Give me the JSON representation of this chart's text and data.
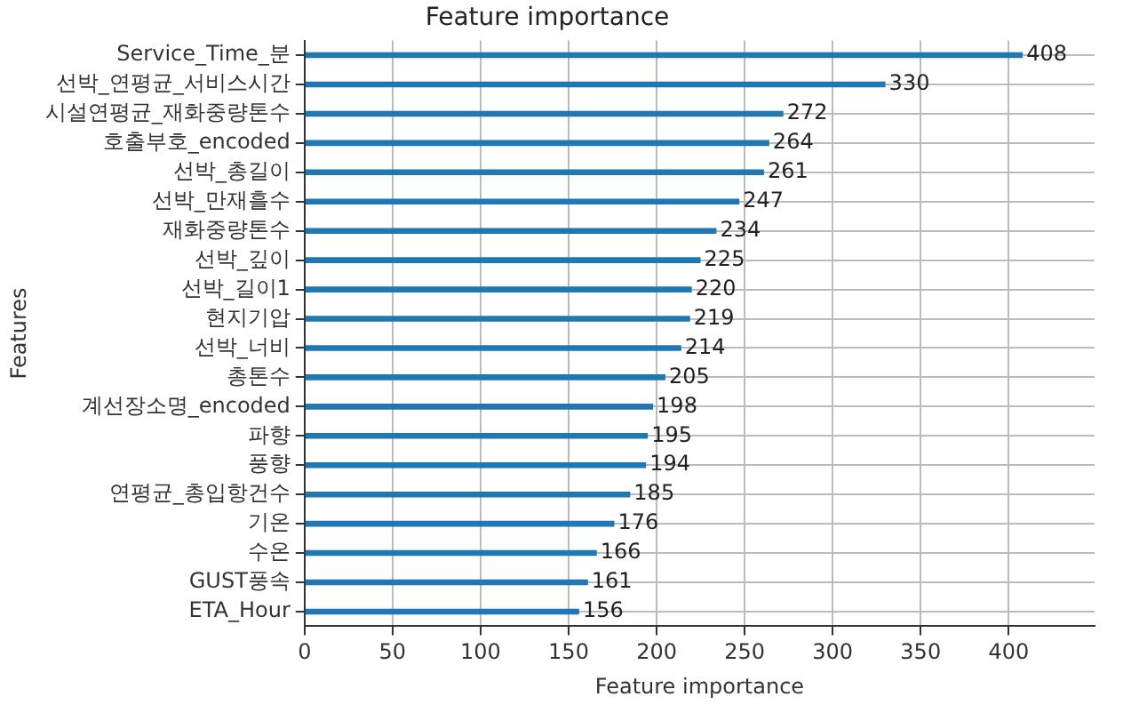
{
  "chart_data": {
    "type": "bar",
    "orientation": "horizontal",
    "title": "Feature importance",
    "xlabel": "Feature importance",
    "ylabel": "Features",
    "categories": [
      "Service_Time_분",
      "선박_연평균_서비스시간",
      "시설연평균_재화중량톤수",
      "호출부호_encoded",
      "선박_총길이",
      "선박_만재흘수",
      "재화중량톤수",
      "선박_깊이",
      "선박_길이1",
      "현지기압",
      "선박_너비",
      "총톤수",
      "계선장소명_encoded",
      "파향",
      "풍향",
      "연평균_총입항건수",
      "기온",
      "수온",
      "GUST풍속",
      "ETA_Hour"
    ],
    "values": [
      408,
      330,
      272,
      264,
      261,
      247,
      234,
      225,
      220,
      219,
      214,
      205,
      198,
      195,
      194,
      185,
      176,
      166,
      161,
      156
    ],
    "color": "#1f77b4",
    "xlim": [
      0,
      448.8
    ],
    "xticks": [
      0,
      50,
      100,
      150,
      200,
      250,
      300,
      350,
      400
    ],
    "grid": true,
    "data_labels": true,
    "legend": false
  }
}
